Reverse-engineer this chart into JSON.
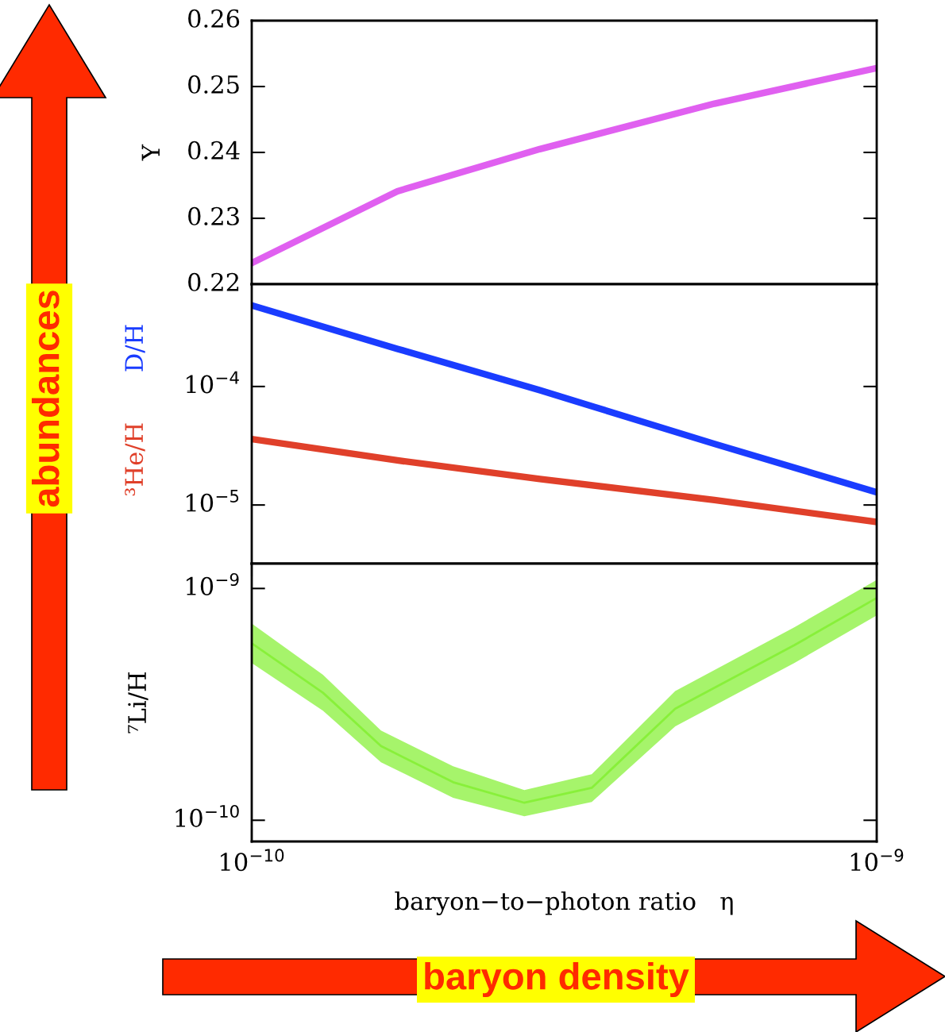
{
  "chart_data": [
    {
      "type": "line",
      "ylabel": "Y",
      "log": "x",
      "tick_labels": "y",
      "annotations": [
        "abundances"
      ],
      "xlim": [
        1e-10,
        1e-09
      ],
      "ylim": [
        0.22,
        0.26
      ],
      "yticks": [
        0.22,
        0.23,
        0.24,
        0.25,
        0.26
      ],
      "x": [
        1e-10,
        1.71e-10,
        2.89e-10,
        5.5e-10,
        1e-09
      ],
      "series": [
        {
          "color": "#e060f0",
          "values": [
            0.2232,
            0.2341,
            0.2405,
            0.2474,
            0.2528
          ]
        }
      ]
    },
    {
      "type": "line",
      "log": "xy",
      "tick_labels": "y",
      "xlim": [
        1e-10,
        1e-09
      ],
      "ylim": [
        3.2e-06,
        0.00073
      ],
      "yticks": [
        {
          "value": 1e-05,
          "label": "10$^{−5}$"
        },
        {
          "value": 0.0001,
          "label": "10$^{−4}$"
        }
      ],
      "x": [
        1e-10,
        1.71e-10,
        2.89e-10,
        5.5e-10,
        1e-09
      ],
      "series": [
        {
          "name": "D/H",
          "color": "#1a3cff",
          "values": [
            0.000484,
            0.000208,
            9.3e-05,
            3.28e-05,
            1.28e-05
          ]
        },
        {
          "name": "³He/H",
          "color": "#e0402a",
          "values": [
            3.6e-05,
            2.38e-05,
            1.66e-05,
            1.1e-05,
            7.2e-06
          ]
        }
      ]
    },
    {
      "type": "line",
      "ylabel": "⁷Li/H",
      "xlabel": "baryon−to−photon ratio   η",
      "log": "xy",
      "annotations": [
        "baryon density"
      ],
      "xlim": [
        1e-10,
        1e-09
      ],
      "ylim": [
        8.1e-11,
        1.28e-09
      ],
      "yticks": [
        {
          "value": 1e-10,
          "label": "10$^{−10}$"
        },
        {
          "value": 1e-09,
          "label": "10$^{−9}$"
        }
      ],
      "xticks": [
        {
          "value": 1e-10,
          "label": "10$^{−10}$"
        },
        {
          "value": 1e-09,
          "label": "10$^{−9}$"
        }
      ],
      "x": [
        1e-10,
        1.3e-10,
        1.61e-10,
        2.1e-10,
        2.73e-10,
        3.5e-10,
        4.76e-10,
        7.38e-10,
        1e-09
      ],
      "series": [
        {
          "color": "#88f03a",
          "values": [
            5.8e-10,
            3.55e-10,
            2.09e-10,
            1.46e-10,
            1.19e-10,
            1.38e-10,
            3.03e-10,
            5.69e-10,
            9.1e-10
          ],
          "lower": [
            4.77e-10,
            2.97e-10,
            1.78e-10,
            1.25e-10,
            1.04e-10,
            1.2e-10,
            2.54e-10,
            4.77e-10,
            7.65e-10
          ],
          "upper": [
            7.06e-10,
            4.24e-10,
            2.44e-10,
            1.71e-10,
            1.35e-10,
            1.58e-10,
            3.61e-10,
            6.8e-10,
            1.09e-09
          ]
        }
      ]
    }
  ]
}
